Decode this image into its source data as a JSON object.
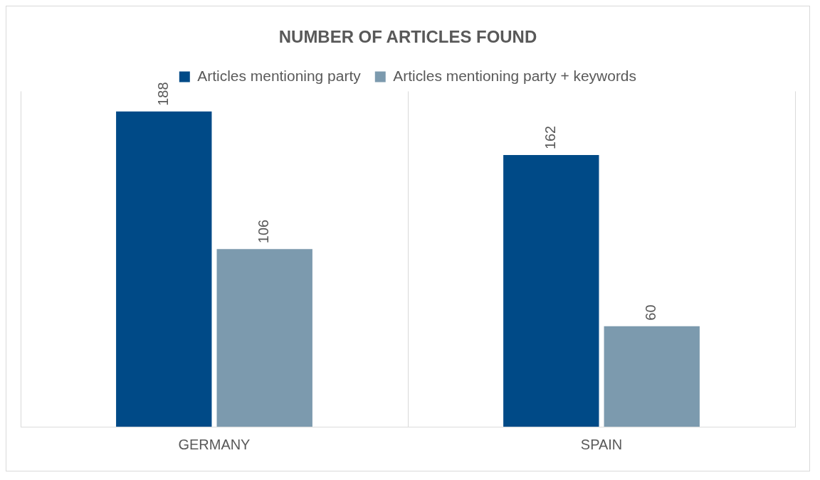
{
  "chart_data": {
    "type": "bar",
    "title": "NUMBER OF ARTICLES FOUND",
    "categories": [
      "GERMANY",
      "SPAIN"
    ],
    "series": [
      {
        "name": "Articles mentioning party",
        "color": "#004a87",
        "values": [
          188,
          162
        ]
      },
      {
        "name": "Articles mentioning party + keywords",
        "color": "#7c9aae",
        "values": [
          106,
          60
        ]
      }
    ],
    "data_labels": true,
    "legend": "top",
    "grid": "x"
  }
}
